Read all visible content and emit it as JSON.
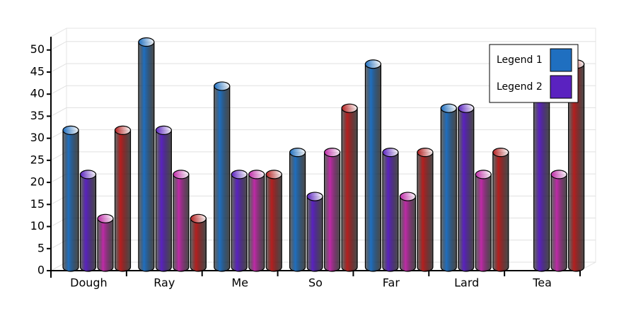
{
  "chart_data": {
    "type": "bar3d",
    "categories": [
      "Dough",
      "Ray",
      "Me",
      "So",
      "Far",
      "Lard",
      "Tea"
    ],
    "series": [
      {
        "name": "Legend 1",
        "color": "#1f6fc0",
        "values": [
          31,
          51,
          41,
          26,
          46,
          36,
          null
        ]
      },
      {
        "name": "Legend 2",
        "color": "#5a22c0",
        "values": [
          21,
          31,
          21,
          16,
          26,
          36,
          41
        ]
      },
      {
        "color": "#c02aa8",
        "values": [
          11,
          21,
          21,
          26,
          16,
          21,
          21
        ]
      },
      {
        "color": "#b51f1f",
        "values": [
          31,
          11,
          21,
          36,
          26,
          26,
          46
        ]
      }
    ],
    "ylim": [
      0,
      53
    ],
    "yticks": [
      0,
      5,
      10,
      15,
      20,
      25,
      30,
      35,
      40,
      45,
      50
    ],
    "grid": true
  }
}
